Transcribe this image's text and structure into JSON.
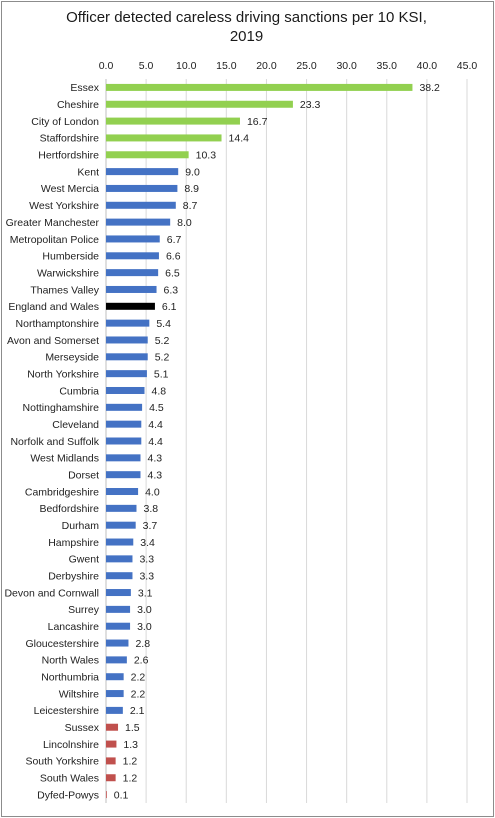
{
  "chart_data": {
    "type": "bar",
    "orientation": "horizontal",
    "title_line1": "Officer detected careless driving sanctions per 10 KSI,",
    "title_line2": "2019",
    "xlim": [
      0,
      45
    ],
    "xticks": [
      "0.0",
      "5.0",
      "10.0",
      "15.0",
      "20.0",
      "25.0",
      "30.0",
      "35.0",
      "40.0",
      "45.0"
    ],
    "grid": true,
    "legend": "none",
    "colors": {
      "high": "#92d050",
      "standard": "#4472c4",
      "national": "#000000",
      "low": "#c0504d"
    },
    "categories": [
      "Essex",
      "Cheshire",
      "City of London",
      "Staffordshire",
      "Hertfordshire",
      "Kent",
      "West Mercia",
      "West Yorkshire",
      "Greater Manchester",
      "Metropolitan Police",
      "Humberside",
      "Warwickshire",
      "Thames Valley",
      "England and Wales",
      "Northamptonshire",
      "Avon and Somerset",
      "Merseyside",
      "North Yorkshire",
      "Cumbria",
      "Nottinghamshire",
      "Cleveland",
      "Norfolk and Suffolk",
      "West Midlands",
      "Dorset",
      "Cambridgeshire",
      "Bedfordshire",
      "Durham",
      "Hampshire",
      "Gwent",
      "Derbyshire",
      "Devon and Cornwall",
      "Surrey",
      "Lancashire",
      "Gloucestershire",
      "North Wales",
      "Northumbria",
      "Wiltshire",
      "Leicestershire",
      "Sussex",
      "Lincolnshire",
      "South Yorkshire",
      "South Wales",
      "Dyfed-Powys"
    ],
    "values": [
      38.2,
      23.3,
      16.7,
      14.4,
      10.3,
      9.0,
      8.9,
      8.7,
      8.0,
      6.7,
      6.6,
      6.5,
      6.3,
      6.1,
      5.4,
      5.2,
      5.2,
      5.1,
      4.8,
      4.5,
      4.4,
      4.4,
      4.3,
      4.3,
      4.0,
      3.8,
      3.7,
      3.4,
      3.3,
      3.3,
      3.1,
      3.0,
      3.0,
      2.8,
      2.6,
      2.2,
      2.2,
      2.1,
      1.5,
      1.3,
      1.2,
      1.2,
      0.1
    ],
    "value_labels": [
      "38.2",
      "23.3",
      "16.7",
      "14.4",
      "10.3",
      "9.0",
      "8.9",
      "8.7",
      "8.0",
      "6.7",
      "6.6",
      "6.5",
      "6.3",
      "6.1",
      "5.4",
      "5.2",
      "5.2",
      "5.1",
      "4.8",
      "4.5",
      "4.4",
      "4.4",
      "4.3",
      "4.3",
      "4.0",
      "3.8",
      "3.7",
      "3.4",
      "3.3",
      "3.3",
      "3.1",
      "3.0",
      "3.0",
      "2.8",
      "2.6",
      "2.2",
      "2.2",
      "2.1",
      "1.5",
      "1.3",
      "1.2",
      "1.2",
      "0.1"
    ],
    "bar_color_groups": [
      "high",
      "high",
      "high",
      "high",
      "high",
      "standard",
      "standard",
      "standard",
      "standard",
      "standard",
      "standard",
      "standard",
      "standard",
      "national",
      "standard",
      "standard",
      "standard",
      "standard",
      "standard",
      "standard",
      "standard",
      "standard",
      "standard",
      "standard",
      "standard",
      "standard",
      "standard",
      "standard",
      "standard",
      "standard",
      "standard",
      "standard",
      "standard",
      "standard",
      "standard",
      "standard",
      "standard",
      "standard",
      "low",
      "low",
      "low",
      "low",
      "low"
    ]
  }
}
